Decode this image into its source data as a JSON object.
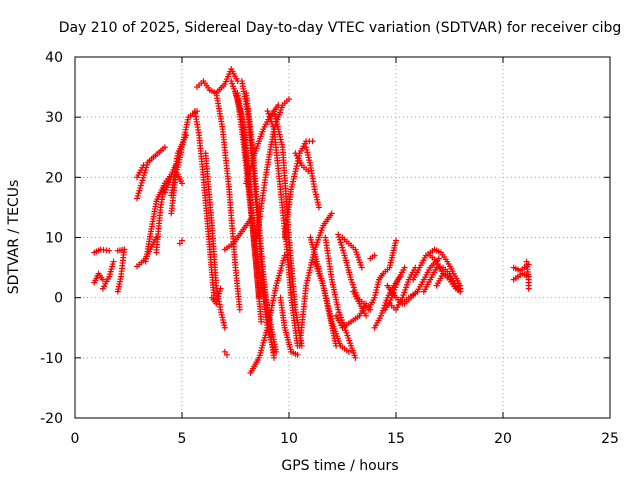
{
  "chart_data": {
    "type": "scatter",
    "title": "Day 210 of 2025, Sidereal Day-to-day VTEC variation (SDTVAR) for receiver cibg",
    "xlabel": "GPS time / hours",
    "ylabel": "SDTVAR / TECUs",
    "xlim": [
      0,
      25
    ],
    "ylim": [
      -20,
      40
    ],
    "xticks": [
      "0",
      "5",
      "10",
      "15",
      "20",
      "25"
    ],
    "yticks": [
      "-20",
      "-10",
      "0",
      "10",
      "20",
      "30",
      "40"
    ],
    "grid": true,
    "marker": "plus",
    "color": "#ff0000",
    "tracks": [
      [
        [
          0.9,
          7.5
        ],
        [
          1.2,
          8
        ],
        [
          1.6,
          7.8
        ]
      ],
      [
        [
          0.9,
          2.5
        ],
        [
          1.1,
          4
        ],
        [
          1.3,
          3
        ]
      ],
      [
        [
          1.3,
          1.5
        ],
        [
          1.6,
          3.5
        ],
        [
          1.8,
          6
        ]
      ],
      [
        [
          2.0,
          1
        ],
        [
          2.15,
          3.5
        ],
        [
          2.3,
          8
        ]
      ],
      [
        [
          2.0,
          7.8
        ],
        [
          2.3,
          8
        ]
      ],
      [
        [
          2.9,
          5.2
        ],
        [
          3.3,
          6.5
        ],
        [
          3.8,
          10
        ]
      ],
      [
        [
          2.9,
          16.5
        ],
        [
          3.4,
          22.5
        ],
        [
          4.2,
          25
        ]
      ],
      [
        [
          2.9,
          20
        ],
        [
          3.2,
          22
        ]
      ],
      [
        [
          3.3,
          6
        ],
        [
          3.8,
          16
        ],
        [
          4.2,
          19
        ],
        [
          4.5,
          20.5
        ],
        [
          4.7,
          22
        ]
      ],
      [
        [
          3.8,
          7.5
        ],
        [
          4.0,
          15
        ],
        [
          4.2,
          19
        ]
      ],
      [
        [
          4.2,
          17.5
        ],
        [
          4.5,
          20
        ],
        [
          4.8,
          20.5
        ],
        [
          5.0,
          19
        ]
      ],
      [
        [
          4.5,
          14
        ],
        [
          4.7,
          20
        ],
        [
          5.0,
          25
        ],
        [
          5.3,
          30
        ],
        [
          5.7,
          31
        ]
      ],
      [
        [
          4.5,
          17
        ],
        [
          4.8,
          24
        ],
        [
          5.2,
          27
        ]
      ],
      [
        [
          4.9,
          9
        ],
        [
          5.0,
          9.5
        ]
      ],
      [
        [
          5.6,
          31
        ],
        [
          5.8,
          27
        ],
        [
          6.0,
          20
        ],
        [
          6.3,
          8
        ],
        [
          6.5,
          0
        ]
      ],
      [
        [
          5.7,
          35
        ],
        [
          6.0,
          36
        ],
        [
          6.3,
          34.5
        ],
        [
          6.6,
          34
        ],
        [
          7.0,
          35.5
        ],
        [
          7.3,
          38
        ],
        [
          7.6,
          36
        ]
      ],
      [
        [
          6.1,
          24
        ],
        [
          6.4,
          12
        ],
        [
          6.6,
          2
        ],
        [
          6.8,
          -2
        ],
        [
          7.0,
          -5
        ]
      ],
      [
        [
          6.4,
          0
        ],
        [
          6.6,
          -1
        ],
        [
          6.8,
          1.5
        ]
      ],
      [
        [
          6.6,
          34
        ],
        [
          6.9,
          28
        ],
        [
          7.2,
          18
        ],
        [
          7.5,
          5
        ],
        [
          7.7,
          -2
        ]
      ],
      [
        [
          7.0,
          8
        ],
        [
          7.4,
          9
        ],
        [
          7.8,
          11
        ],
        [
          8.2,
          13
        ]
      ],
      [
        [
          7.0,
          -9
        ],
        [
          7.1,
          -9.5
        ]
      ],
      [
        [
          7.3,
          36
        ],
        [
          7.6,
          33
        ],
        [
          7.9,
          25
        ],
        [
          8.2,
          15
        ],
        [
          8.5,
          4
        ],
        [
          8.7,
          -4
        ]
      ],
      [
        [
          7.5,
          34
        ],
        [
          7.8,
          30
        ],
        [
          8.1,
          20
        ],
        [
          8.4,
          8
        ],
        [
          8.6,
          0
        ]
      ],
      [
        [
          7.6,
          34
        ],
        [
          7.9,
          28
        ],
        [
          8.2,
          15
        ],
        [
          8.6,
          5
        ],
        [
          9.0,
          -5
        ],
        [
          9.3,
          -9
        ]
      ],
      [
        [
          7.8,
          36
        ],
        [
          8.1,
          30
        ],
        [
          8.4,
          18
        ],
        [
          8.7,
          6
        ],
        [
          9.0,
          -2
        ],
        [
          9.4,
          -9
        ]
      ],
      [
        [
          8.0,
          34
        ],
        [
          8.3,
          25
        ],
        [
          8.6,
          12
        ],
        [
          8.9,
          0
        ],
        [
          9.3,
          -10
        ]
      ],
      [
        [
          8.2,
          -12.5
        ],
        [
          8.6,
          -10
        ],
        [
          9.0,
          -5
        ],
        [
          9.4,
          2
        ],
        [
          9.8,
          7
        ]
      ],
      [
        [
          8.5,
          10
        ],
        [
          8.9,
          20
        ],
        [
          9.3,
          28
        ],
        [
          9.7,
          32
        ],
        [
          10.0,
          33
        ]
      ],
      [
        [
          8.0,
          19
        ],
        [
          8.4,
          24
        ],
        [
          8.8,
          28
        ],
        [
          9.1,
          30
        ],
        [
          9.5,
          32
        ]
      ],
      [
        [
          9.0,
          31
        ],
        [
          9.3,
          28
        ],
        [
          9.6,
          18
        ],
        [
          9.9,
          8
        ],
        [
          10.1,
          0
        ],
        [
          10.4,
          -8
        ]
      ],
      [
        [
          9.3,
          31
        ],
        [
          9.7,
          25
        ],
        [
          10.0,
          10
        ],
        [
          10.3,
          -2
        ],
        [
          10.6,
          -8
        ]
      ],
      [
        [
          9.6,
          0
        ],
        [
          9.8,
          -5
        ],
        [
          10.1,
          -9
        ],
        [
          10.4,
          -9.5
        ]
      ],
      [
        [
          9.8,
          10
        ],
        [
          10.1,
          18
        ],
        [
          10.5,
          24
        ],
        [
          10.8,
          26
        ],
        [
          11.1,
          26
        ]
      ],
      [
        [
          10.3,
          24
        ],
        [
          10.6,
          22
        ],
        [
          10.9,
          21
        ]
      ],
      [
        [
          10.8,
          25
        ],
        [
          11.0,
          22
        ],
        [
          11.2,
          18
        ],
        [
          11.4,
          15
        ]
      ],
      [
        [
          10.5,
          -8
        ],
        [
          10.8,
          2
        ],
        [
          11.2,
          8
        ],
        [
          11.6,
          12
        ],
        [
          12.0,
          14
        ]
      ],
      [
        [
          11.0,
          10
        ],
        [
          11.3,
          6
        ],
        [
          11.6,
          2
        ],
        [
          11.9,
          -3
        ],
        [
          12.2,
          -8
        ]
      ],
      [
        [
          11.2,
          6
        ],
        [
          11.6,
          2
        ],
        [
          12.0,
          -4
        ],
        [
          12.4,
          -8
        ],
        [
          12.8,
          -9
        ]
      ],
      [
        [
          11.7,
          10
        ],
        [
          12.0,
          3
        ],
        [
          12.3,
          -2
        ],
        [
          12.6,
          -5
        ],
        [
          12.9,
          -8
        ],
        [
          13.1,
          -10
        ]
      ],
      [
        [
          12.2,
          -3
        ],
        [
          12.5,
          -5
        ],
        [
          12.9,
          -4
        ],
        [
          13.3,
          -3
        ],
        [
          13.6,
          -1
        ]
      ],
      [
        [
          12.3,
          10.5
        ],
        [
          12.6,
          7
        ],
        [
          12.9,
          3
        ],
        [
          13.2,
          0
        ],
        [
          13.5,
          -1
        ],
        [
          13.8,
          -2
        ]
      ],
      [
        [
          12.5,
          10
        ],
        [
          12.8,
          9
        ],
        [
          13.1,
          8
        ],
        [
          13.4,
          5
        ]
      ],
      [
        [
          13.0,
          1
        ],
        [
          13.3,
          -1
        ],
        [
          13.6,
          -3
        ]
      ],
      [
        [
          13.8,
          6.5
        ],
        [
          14.0,
          7
        ]
      ],
      [
        [
          13.7,
          -2
        ],
        [
          14.0,
          0
        ],
        [
          14.2,
          3
        ],
        [
          14.4,
          4
        ]
      ],
      [
        [
          14.0,
          -5
        ],
        [
          14.3,
          -3
        ],
        [
          14.6,
          0
        ],
        [
          14.9,
          2
        ],
        [
          15.2,
          3.5
        ]
      ],
      [
        [
          14.4,
          4
        ],
        [
          14.7,
          5
        ],
        [
          15.0,
          9.5
        ]
      ],
      [
        [
          14.5,
          -2
        ],
        [
          14.8,
          0
        ],
        [
          15.1,
          3
        ],
        [
          15.4,
          5
        ]
      ],
      [
        [
          14.6,
          2
        ],
        [
          15.0,
          0
        ],
        [
          15.3,
          -1
        ],
        [
          15.6,
          0
        ],
        [
          16.0,
          1
        ]
      ],
      [
        [
          14.7,
          -1
        ],
        [
          15.0,
          -2
        ],
        [
          15.3,
          0
        ],
        [
          15.6,
          3
        ],
        [
          15.9,
          5
        ]
      ],
      [
        [
          15.4,
          -1
        ],
        [
          15.7,
          0
        ],
        [
          16.0,
          1
        ],
        [
          16.3,
          3
        ],
        [
          16.6,
          5
        ],
        [
          17.0,
          6.5
        ]
      ],
      [
        [
          15.8,
          3
        ],
        [
          16.1,
          5
        ],
        [
          16.4,
          7
        ],
        [
          16.8,
          8
        ],
        [
          17.1,
          7.5
        ],
        [
          17.4,
          6
        ],
        [
          17.7,
          4
        ],
        [
          18.0,
          2
        ]
      ],
      [
        [
          16.3,
          1
        ],
        [
          16.6,
          3
        ],
        [
          16.9,
          5
        ],
        [
          17.2,
          5
        ],
        [
          17.5,
          4
        ],
        [
          17.8,
          2
        ],
        [
          18.0,
          1
        ]
      ],
      [
        [
          16.6,
          7
        ],
        [
          16.9,
          6
        ],
        [
          17.2,
          4
        ],
        [
          17.5,
          3
        ],
        [
          17.8,
          1.5
        ],
        [
          18.0,
          1
        ]
      ],
      [
        [
          16.9,
          2
        ],
        [
          17.2,
          4
        ],
        [
          17.5,
          3.5
        ],
        [
          17.8,
          2
        ],
        [
          18.0,
          1.5
        ]
      ],
      [
        [
          20.5,
          3
        ],
        [
          20.9,
          4
        ],
        [
          21.2,
          3.5
        ]
      ],
      [
        [
          20.5,
          5
        ],
        [
          20.8,
          4.5
        ],
        [
          21.2,
          5.5
        ]
      ],
      [
        [
          21.1,
          6
        ],
        [
          21.2,
          3
        ],
        [
          21.2,
          1.5
        ]
      ]
    ]
  }
}
